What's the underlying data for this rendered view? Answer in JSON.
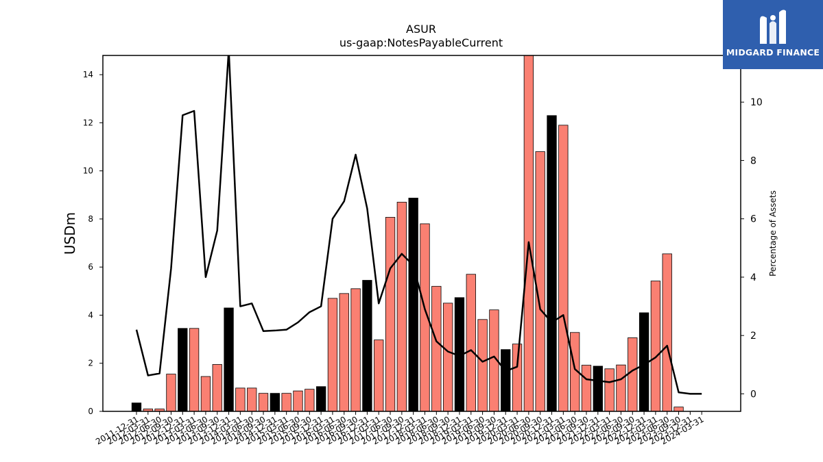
{
  "chart_data": {
    "type": "bar",
    "title": "ASUR",
    "subtitle": "us-gaap:NotesPayableCurrent",
    "ylabel": "USDm",
    "y2label": "Percentage of Assets",
    "ylim": [
      0,
      14.8
    ],
    "y2lim": [
      -0.6,
      11.6
    ],
    "y_ticks": [
      0,
      2,
      4,
      6,
      8,
      10,
      12,
      14
    ],
    "y2_ticks": [
      0,
      2,
      4,
      6,
      8,
      10
    ],
    "categories": [
      "2011-12-31",
      "2012-03-31",
      "2012-06-30",
      "2012-09-30",
      "2012-12-31",
      "2013-03-31",
      "2013-06-30",
      "2013-09-30",
      "2013-12-31",
      "2014-03-31",
      "2014-06-30",
      "2014-09-30",
      "2014-12-31",
      "2015-03-31",
      "2015-06-30",
      "2015-09-30",
      "2015-12-31",
      "2016-03-31",
      "2016-06-30",
      "2016-09-30",
      "2016-12-31",
      "2017-03-31",
      "2017-06-30",
      "2017-09-30",
      "2017-12-31",
      "2018-03-31",
      "2018-06-30",
      "2018-09-30",
      "2018-12-31",
      "2019-03-31",
      "2019-06-30",
      "2019-09-30",
      "2019-12-31",
      "2020-03-31",
      "2020-06-30",
      "2020-09-30",
      "2020-12-31",
      "2021-03-31",
      "2021-06-30",
      "2021-09-30",
      "2021-12-31",
      "2022-03-31",
      "2022-06-30",
      "2022-09-30",
      "2022-12-31",
      "2023-03-31",
      "2023-06-30",
      "2023-09-30",
      "2023-12-31",
      "2024-03-31"
    ],
    "series": [
      {
        "type": "bar",
        "values": [
          0.35,
          0.1,
          0.1,
          1.55,
          3.45,
          3.45,
          1.45,
          1.95,
          4.3,
          0.97,
          0.97,
          0.75,
          0.75,
          0.75,
          0.85,
          0.92,
          1.03,
          4.7,
          4.9,
          5.1,
          5.45,
          2.97,
          8.07,
          8.7,
          8.87,
          7.8,
          5.2,
          4.5,
          4.73,
          5.7,
          3.82,
          4.22,
          2.57,
          2.8,
          14.8,
          10.8,
          12.3,
          11.9,
          3.28,
          1.92,
          1.88,
          1.77,
          1.93,
          3.06,
          4.1,
          5.42,
          6.55,
          0.18,
          0,
          0
        ],
        "colors": [
          "#000000",
          "#fa8072",
          "#fa8072",
          "#fa8072",
          "#000000",
          "#fa8072",
          "#fa8072",
          "#fa8072",
          "#000000",
          "#fa8072",
          "#fa8072",
          "#fa8072",
          "#000000",
          "#fa8072",
          "#fa8072",
          "#fa8072",
          "#000000",
          "#fa8072",
          "#fa8072",
          "#fa8072",
          "#000000",
          "#fa8072",
          "#fa8072",
          "#fa8072",
          "#000000",
          "#fa8072",
          "#fa8072",
          "#fa8072",
          "#000000",
          "#fa8072",
          "#fa8072",
          "#fa8072",
          "#000000",
          "#fa8072",
          "#fa8072",
          "#fa8072",
          "#000000",
          "#fa8072",
          "#fa8072",
          "#fa8072",
          "#000000",
          "#fa8072",
          "#fa8072",
          "#fa8072",
          "#000000",
          "#fa8072",
          "#fa8072",
          "#fa8072",
          "#000000",
          "#fa8072"
        ]
      },
      {
        "type": "line",
        "axis": "right",
        "color": "#000000",
        "values": [
          2.2,
          0.63,
          0.7,
          4.3,
          9.55,
          9.7,
          4.0,
          5.6,
          11.8,
          3.0,
          3.1,
          2.15,
          2.17,
          2.2,
          2.45,
          2.8,
          3.0,
          6.0,
          6.6,
          8.2,
          6.35,
          3.1,
          4.3,
          4.8,
          4.4,
          2.9,
          1.8,
          1.45,
          1.3,
          1.5,
          1.1,
          1.28,
          0.78,
          0.93,
          5.2,
          2.9,
          2.45,
          2.7,
          0.85,
          0.5,
          0.45,
          0.4,
          0.5,
          0.8,
          1.0,
          1.25,
          1.65,
          0.05,
          0.0,
          0.0
        ]
      }
    ],
    "legend": "none",
    "grid": false
  },
  "branding": {
    "name": "MIDGARD FINANCE",
    "background": "#2f5fae"
  }
}
